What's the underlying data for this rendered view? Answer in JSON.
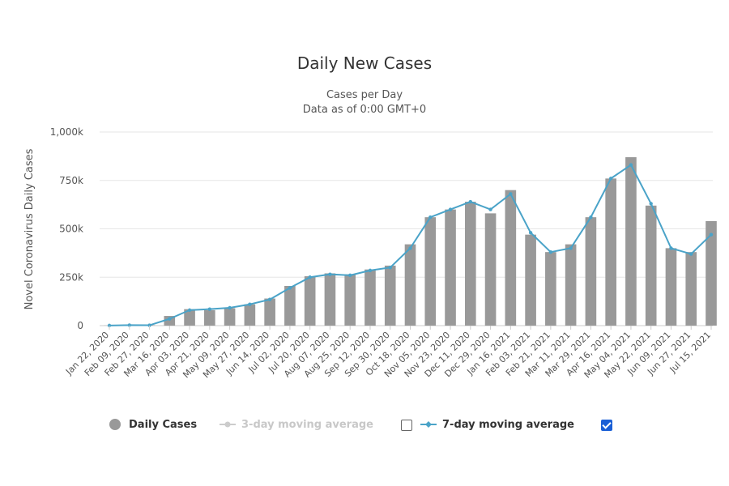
{
  "chart_data": {
    "type": "bar",
    "title": "Daily New Cases",
    "subtitle_lines": [
      "Cases per Day",
      "Data as of 0:00 GMT+0"
    ],
    "ylabel": "Novel Coronavirus Daily Cases",
    "xlabel": "",
    "ylim": [
      0,
      1000000
    ],
    "y_ticks": [
      0,
      250000,
      500000,
      750000,
      1000000
    ],
    "y_tick_labels": [
      "0",
      "250k",
      "500k",
      "750k",
      "1,000k"
    ],
    "x_tick_labels": [
      "Jan 22, 2020",
      "Feb 09, 2020",
      "Feb 27, 2020",
      "Mar 16, 2020",
      "Apr 03, 2020",
      "Apr 21, 2020",
      "May 09, 2020",
      "May 27, 2020",
      "Jun 14, 2020",
      "Jul 02, 2020",
      "Jul 20, 2020",
      "Aug 07, 2020",
      "Aug 25, 2020",
      "Sep 12, 2020",
      "Sep 30, 2020",
      "Oct 18, 2020",
      "Nov 05, 2020",
      "Nov 23, 2020",
      "Dec 11, 2020",
      "Dec 29, 2020",
      "Jan 16, 2021",
      "Feb 03, 2021",
      "Feb 21, 2021",
      "Mar 11, 2021",
      "Mar 29, 2021",
      "Apr 16, 2021",
      "May 04, 2021",
      "May 22, 2021",
      "Jun 09, 2021",
      "Jun 27, 2021",
      "Jul 15, 2021"
    ],
    "grid": true,
    "legend_position": "bottom",
    "series": [
      {
        "name": "Daily Cases",
        "kind": "bar",
        "color": "#999999",
        "x_dates": [
          "Jan 22, 2020",
          "Feb 09, 2020",
          "Feb 27, 2020",
          "Mar 16, 2020",
          "Apr 03, 2020",
          "Apr 21, 2020",
          "May 09, 2020",
          "May 27, 2020",
          "Jun 14, 2020",
          "Jul 02, 2020",
          "Jul 20, 2020",
          "Aug 07, 2020",
          "Aug 25, 2020",
          "Sep 12, 2020",
          "Sep 30, 2020",
          "Oct 18, 2020",
          "Nov 05, 2020",
          "Nov 23, 2020",
          "Dec 11, 2020",
          "Dec 29, 2020",
          "Jan 16, 2021",
          "Feb 03, 2021",
          "Feb 21, 2021",
          "Mar 11, 2021",
          "Mar 29, 2021",
          "Apr 16, 2021",
          "May 04, 2021",
          "May 22, 2021",
          "Jun 09, 2021",
          "Jun 27, 2021",
          "Jul 15, 2021"
        ],
        "values": [
          600,
          3000,
          2000,
          50000,
          85000,
          80000,
          90000,
          110000,
          140000,
          205000,
          255000,
          270000,
          265000,
          290000,
          310000,
          420000,
          560000,
          600000,
          640000,
          580000,
          700000,
          470000,
          380000,
          420000,
          560000,
          760000,
          870000,
          620000,
          400000,
          380000,
          540000
        ]
      },
      {
        "name": "3-day moving average",
        "kind": "line",
        "color": "#cccccc",
        "enabled": false
      },
      {
        "name": "7-day moving average",
        "kind": "line",
        "color": "#4aa3c8",
        "enabled": true,
        "x_dates": [
          "Jan 22, 2020",
          "Feb 09, 2020",
          "Feb 27, 2020",
          "Mar 16, 2020",
          "Apr 03, 2020",
          "Apr 21, 2020",
          "May 09, 2020",
          "May 27, 2020",
          "Jun 14, 2020",
          "Jul 02, 2020",
          "Jul 20, 2020",
          "Aug 07, 2020",
          "Aug 25, 2020",
          "Sep 12, 2020",
          "Sep 30, 2020",
          "Oct 18, 2020",
          "Nov 05, 2020",
          "Nov 23, 2020",
          "Dec 11, 2020",
          "Dec 29, 2020",
          "Jan 16, 2021",
          "Feb 03, 2021",
          "Feb 21, 2021",
          "Mar 11, 2021",
          "Mar 29, 2021",
          "Apr 16, 2021",
          "May 04, 2021",
          "May 22, 2021",
          "Jun 09, 2021",
          "Jun 27, 2021",
          "Jul 15, 2021"
        ],
        "values": [
          500,
          2500,
          2000,
          35000,
          80000,
          85000,
          92000,
          110000,
          135000,
          195000,
          250000,
          265000,
          260000,
          285000,
          300000,
          400000,
          560000,
          600000,
          640000,
          600000,
          680000,
          480000,
          380000,
          400000,
          560000,
          760000,
          830000,
          630000,
          400000,
          370000,
          470000
        ]
      }
    ]
  },
  "legend": {
    "daily_cases": "Daily Cases",
    "ma3": "3-day moving average",
    "ma7": "7-day moving average"
  }
}
